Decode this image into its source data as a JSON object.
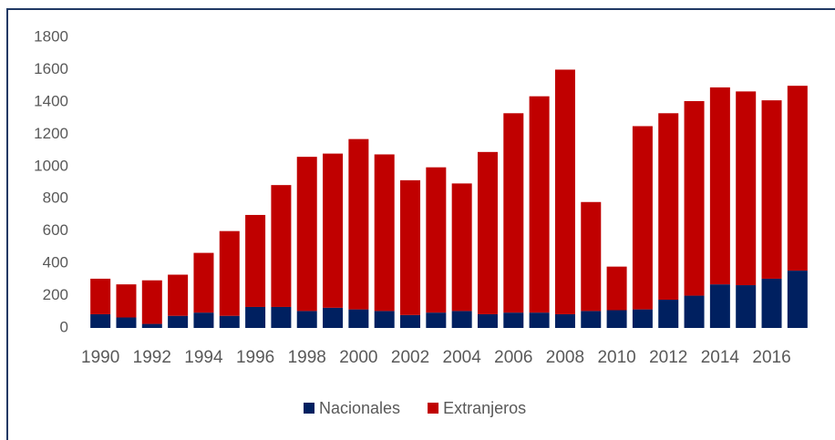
{
  "chart_data": {
    "type": "stacked_bar",
    "categories": [
      "1990",
      null,
      "1992",
      null,
      "1994",
      null,
      "1996",
      null,
      "1998",
      null,
      "2000",
      null,
      "2002",
      null,
      "2004",
      null,
      "2006",
      null,
      "2008",
      null,
      "2010",
      null,
      "2012",
      null,
      "2014",
      null,
      "2016",
      null
    ],
    "series": [
      {
        "name": "Nacionales",
        "color": "#002060",
        "values": [
          85,
          65,
          25,
          75,
          95,
          75,
          130,
          130,
          105,
          125,
          115,
          105,
          80,
          95,
          105,
          85,
          95,
          95,
          85,
          105,
          110,
          115,
          175,
          200,
          270,
          265,
          305,
          355
        ]
      },
      {
        "name": "Extranjeros",
        "color": "#c00000",
        "values": [
          220,
          205,
          270,
          255,
          370,
          525,
          570,
          755,
          955,
          955,
          1055,
          970,
          835,
          900,
          790,
          1005,
          1235,
          1340,
          1515,
          675,
          270,
          1135,
          1155,
          1205,
          1220,
          1200,
          1105,
          1145
        ]
      }
    ],
    "ylim": [
      0,
      1800
    ],
    "yticks": [
      0,
      200,
      400,
      600,
      800,
      1000,
      1200,
      1400,
      1600,
      1800
    ],
    "legend": "bottom"
  }
}
